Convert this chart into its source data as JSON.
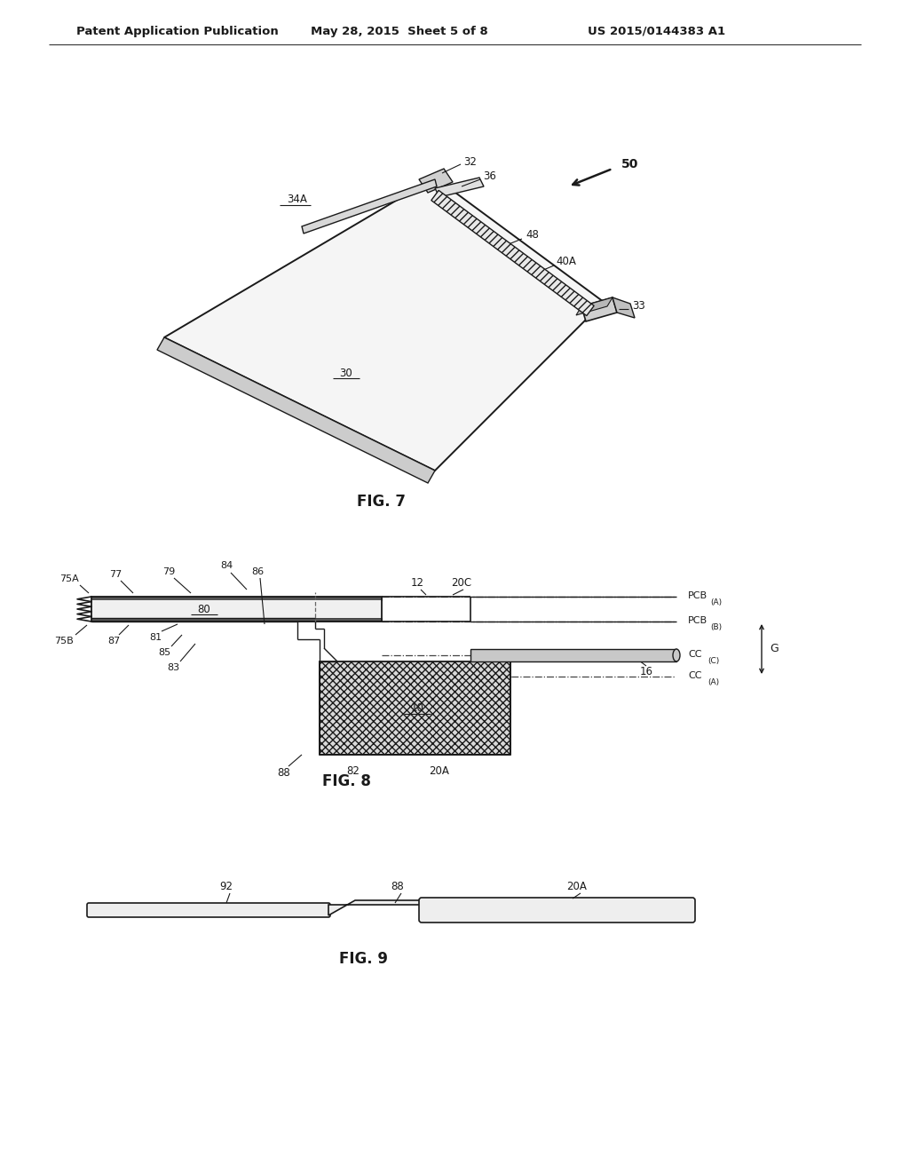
{
  "bg_color": "#ffffff",
  "header_left": "Patent Application Publication",
  "header_mid": "May 28, 2015  Sheet 5 of 8",
  "header_right": "US 2015/0144383 A1",
  "fig7_caption": "FIG. 7",
  "fig8_caption": "FIG. 8",
  "fig9_caption": "FIG. 9",
  "line_color": "#1a1a1a",
  "label_color": "#1a1a1a"
}
